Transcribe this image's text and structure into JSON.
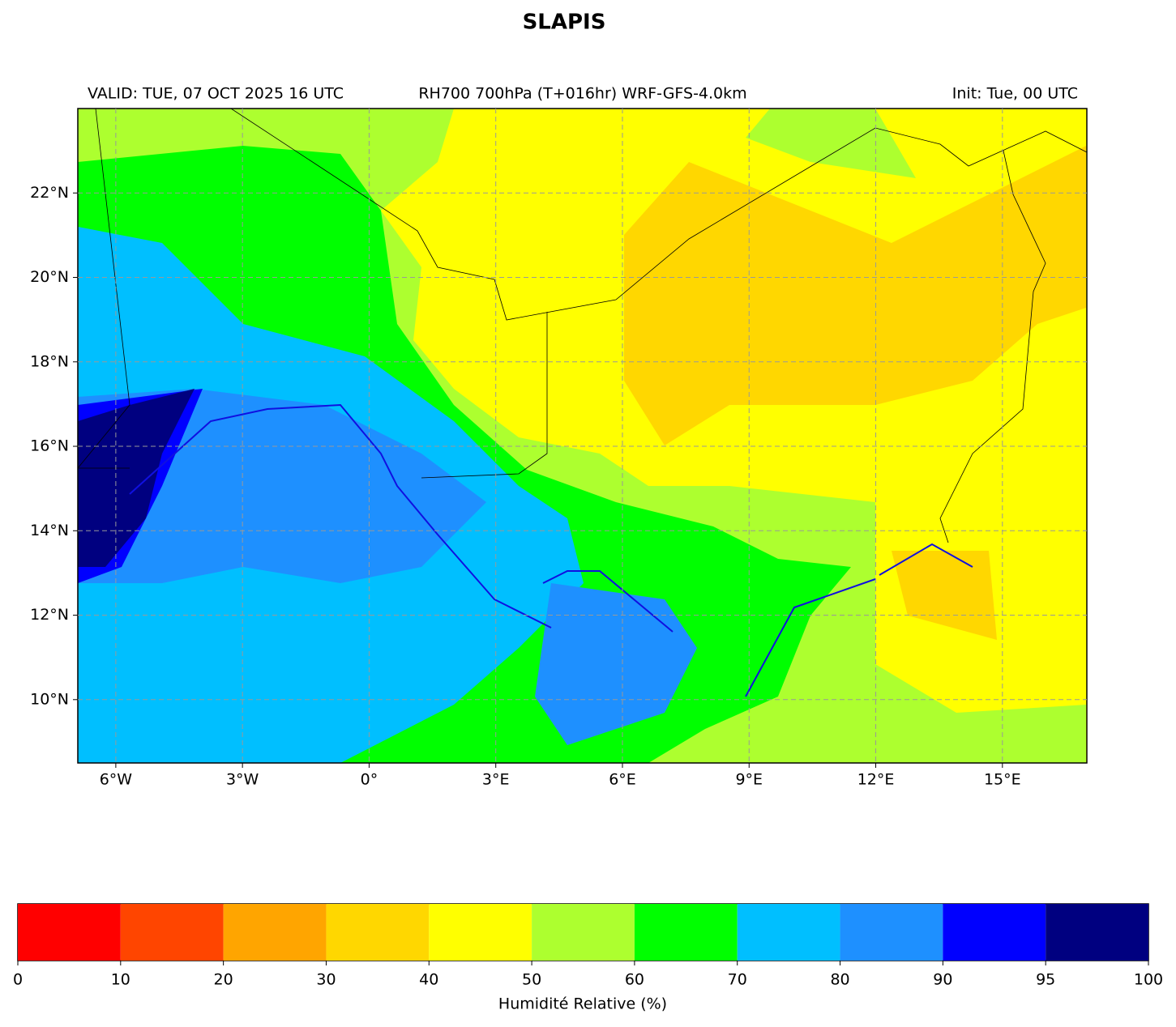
{
  "chart_data": {
    "type": "map",
    "title": "SLAPIS",
    "subtitle_left": "VALID: TUE, 07 OCT 2025 16 UTC",
    "subtitle_center": "RH700 700hPa (T+016hr) WRF-GFS-4.0km",
    "subtitle_right": "Init: Tue, 00 UTC",
    "xlim": [
      -6.9,
      17
    ],
    "ylim": [
      8.5,
      24
    ],
    "xticks": [
      {
        "value": -6,
        "label": "6°W"
      },
      {
        "value": -3,
        "label": "3°W"
      },
      {
        "value": 0,
        "label": "0°"
      },
      {
        "value": 3,
        "label": "3°E"
      },
      {
        "value": 6,
        "label": "6°E"
      },
      {
        "value": 9,
        "label": "9°E"
      },
      {
        "value": 12,
        "label": "12°E"
      },
      {
        "value": 15,
        "label": "15°E"
      }
    ],
    "yticks": [
      {
        "value": 10,
        "label": "10°N"
      },
      {
        "value": 12,
        "label": "12°N"
      },
      {
        "value": 14,
        "label": "14°N"
      },
      {
        "value": 16,
        "label": "16°N"
      },
      {
        "value": 18,
        "label": "18°N"
      },
      {
        "value": 20,
        "label": "20°N"
      },
      {
        "value": 22,
        "label": "22°N"
      }
    ],
    "grid": true,
    "colorbar": {
      "levels": [
        0,
        10,
        20,
        30,
        40,
        50,
        60,
        70,
        80,
        90,
        95,
        100
      ],
      "colors": [
        "#ff0000",
        "#ff4500",
        "#ffa500",
        "#ffd700",
        "#ffff00",
        "#adff2f",
        "#00ff00",
        "#00bfff",
        "#1e90ff",
        "#0000ff",
        "#000080"
      ],
      "label": "Humidité Relative (%)"
    }
  }
}
